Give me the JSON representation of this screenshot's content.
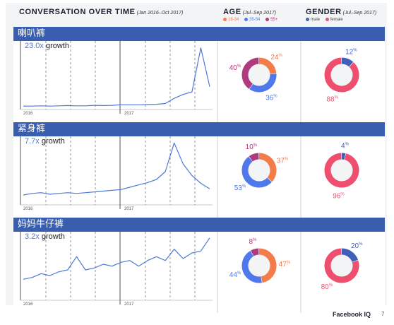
{
  "header": {
    "title": "CONVERSATION OVER TIME",
    "title_sub": "(Jan 2016–Oct 2017)",
    "age_title": "AGE",
    "age_sub": "(Jul–Sep 2017)",
    "gender_title": "GENDER",
    "gender_sub": "(Jul–Sep 2017)"
  },
  "age_legend": [
    {
      "label": "18-34",
      "color": "#f27c4a"
    },
    {
      "label": "35-54",
      "color": "#4e78ec"
    },
    {
      "label": "55+",
      "color": "#b03a7e"
    }
  ],
  "gender_legend": [
    {
      "label": "male",
      "color": "#3f5fb8"
    },
    {
      "label": "female",
      "color": "#ef4f6e"
    }
  ],
  "colors": {
    "band": "#3a5eaf",
    "line": "#4e78d8",
    "age_18_34": "#f27c4a",
    "age_35_54": "#4e78ec",
    "age_55_plus": "#b03a7e",
    "male": "#3f5fb8",
    "female": "#ef4f6e"
  },
  "sections": [
    {
      "title": "喇叭裤",
      "growth": "23.0x",
      "growth_label": "growth",
      "year_labels": [
        "2016",
        "2017"
      ],
      "age": {
        "s18_34": "24",
        "s35_54": "36",
        "s55": "40"
      },
      "gender": {
        "male": "12",
        "female": "88"
      }
    },
    {
      "title": "紧身裤",
      "growth": "7.7x",
      "growth_label": "growth",
      "year_labels": [
        "2016",
        "2017"
      ],
      "age": {
        "s18_34": "37",
        "s35_54": "53",
        "s55": "10"
      },
      "gender": {
        "male": "4",
        "female": "96"
      }
    },
    {
      "title": "妈妈牛仔裤",
      "growth": "3.2x",
      "growth_label": "growth",
      "year_labels": [
        "2016",
        "2017"
      ],
      "age": {
        "s18_34": "47",
        "s35_54": "44",
        "s55": "8"
      },
      "gender": {
        "male": "20",
        "female": "80"
      }
    }
  ],
  "footer": {
    "brand": "Facebook IQ",
    "page": "7"
  },
  "chart_data": [
    {
      "type": "line",
      "title": "喇叭裤",
      "x": [
        "2016-01",
        "2016-02",
        "2016-03",
        "2016-04",
        "2016-05",
        "2016-06",
        "2016-07",
        "2016-08",
        "2016-09",
        "2016-10",
        "2016-11",
        "2016-12",
        "2017-01",
        "2017-02",
        "2017-03",
        "2017-04",
        "2017-05",
        "2017-06",
        "2017-07",
        "2017-08",
        "2017-09",
        "2017-10"
      ],
      "series": [
        {
          "values": [
            0.5,
            0.5,
            0.6,
            0.5,
            0.6,
            0.7,
            0.6,
            0.6,
            0.8,
            0.7,
            0.8,
            1.0,
            1.0,
            1.0,
            1.1,
            1.2,
            1.5,
            3.5,
            5,
            6,
            23,
            8
          ]
        }
      ],
      "ylim": [
        0,
        24
      ]
    },
    {
      "type": "line",
      "title": "紧身裤",
      "x": [
        "2016-01",
        "2016-02",
        "2016-03",
        "2016-04",
        "2016-05",
        "2016-06",
        "2016-07",
        "2016-08",
        "2016-09",
        "2016-10",
        "2016-11",
        "2016-12",
        "2017-01",
        "2017-02",
        "2017-03",
        "2017-04",
        "2017-05",
        "2017-06",
        "2017-07",
        "2017-08",
        "2017-09",
        "2017-10"
      ],
      "series": [
        {
          "values": [
            1,
            1.2,
            1.3,
            1.1,
            1.2,
            1.3,
            1.2,
            1.3,
            1.4,
            1.5,
            1.6,
            1.7,
            2,
            2.3,
            2.6,
            3,
            4,
            7.7,
            5,
            3.5,
            2.5,
            1.8
          ]
        }
      ],
      "ylim": [
        0,
        8
      ]
    },
    {
      "type": "line",
      "title": "妈妈牛仔裤",
      "x": [
        "2016-01",
        "2016-02",
        "2016-03",
        "2016-04",
        "2016-05",
        "2016-06",
        "2016-07",
        "2016-08",
        "2016-09",
        "2016-10",
        "2016-11",
        "2016-12",
        "2017-01",
        "2017-02",
        "2017-03",
        "2017-04",
        "2017-05",
        "2017-06",
        "2017-07",
        "2017-08",
        "2017-09",
        "2017-10"
      ],
      "series": [
        {
          "values": [
            1,
            1.1,
            1.3,
            1.2,
            1.4,
            1.5,
            2.2,
            1.5,
            1.6,
            1.8,
            1.7,
            1.9,
            2,
            1.7,
            2,
            2.2,
            2,
            2.6,
            2.1,
            2.4,
            2.5,
            3.2
          ]
        }
      ],
      "ylim": [
        0,
        3.3
      ]
    }
  ]
}
